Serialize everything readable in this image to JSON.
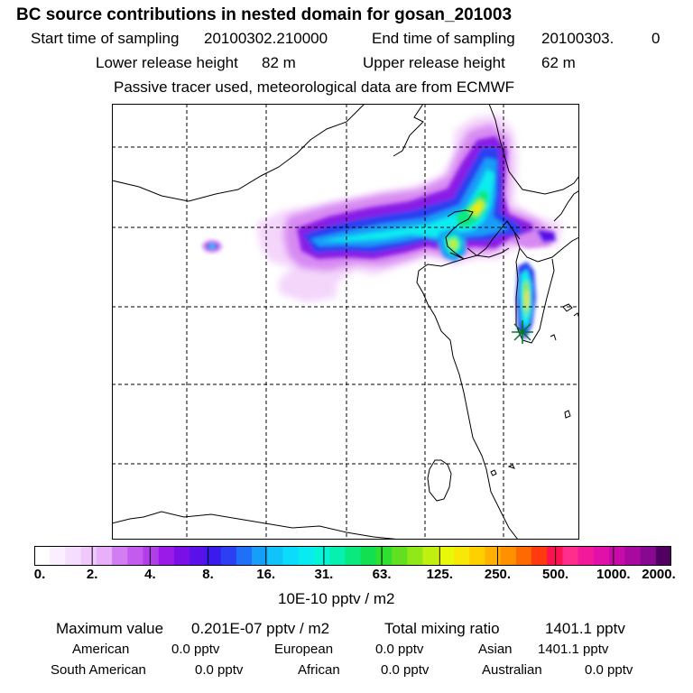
{
  "header": {
    "title": "BC  source contributions in nested domain for gosan_201003",
    "start_label": "Start time of sampling",
    "start_value": "20100302.210000",
    "end_label": "End time of sampling",
    "end_value": "20100303.",
    "end_suffix": "0",
    "lower_label": "Lower release height",
    "lower_value": "82 m",
    "upper_label": "Upper release height",
    "upper_value": "62 m",
    "note": "Passive tracer used, meteorological data are from ECMWF"
  },
  "colorbar": {
    "ticks": [
      "0.",
      "2.",
      "4.",
      "8.",
      "16.",
      "31.",
      "63.",
      "125.",
      "250.",
      "500.",
      "1000.",
      "2000."
    ],
    "unit": "10E-10 pptv / m2",
    "colors": [
      "#ffffff",
      "#fbeefe",
      "#f6ddfd",
      "#f0c8fb",
      "#e9b0fa",
      "#d27ef2",
      "#c55aee",
      "#b23deb",
      "#9a1ae8",
      "#7b10e6",
      "#5a10e8",
      "#3a1aec",
      "#2a40f2",
      "#1e70f6",
      "#159ff8",
      "#10c4fa",
      "#0cdcfb",
      "#08ecf0",
      "#06f5d8",
      "#06f0b0",
      "#0ae880",
      "#12e050",
      "#30e030",
      "#60e020",
      "#90e818",
      "#c0f010",
      "#e8f808",
      "#f8e808",
      "#ffd000",
      "#ffb000",
      "#ff9000",
      "#ff6a00",
      "#ff3a10",
      "#ff1050",
      "#ff2d8c",
      "#f21a9a",
      "#e010a8",
      "#c80aa8",
      "#a80aa0",
      "#880890",
      "#500060"
    ]
  },
  "stats": {
    "max_label": "Maximum value",
    "max_value": "0.201E-07 pptv / m2",
    "total_label": "Total mixing ratio",
    "total_value": "1401.1 pptv",
    "american_label": "American",
    "american_value": "0.0 pptv",
    "european_label": "European",
    "european_value": "0.0 pptv",
    "asian_label": "Asian",
    "asian_value": "1401.1 pptv",
    "south_american_label": "South American",
    "south_american_value": "0.0 pptv",
    "african_label": "African",
    "african_value": "0.0 pptv",
    "australian_label": "Australian",
    "australian_value": "0.0 pptv"
  }
}
